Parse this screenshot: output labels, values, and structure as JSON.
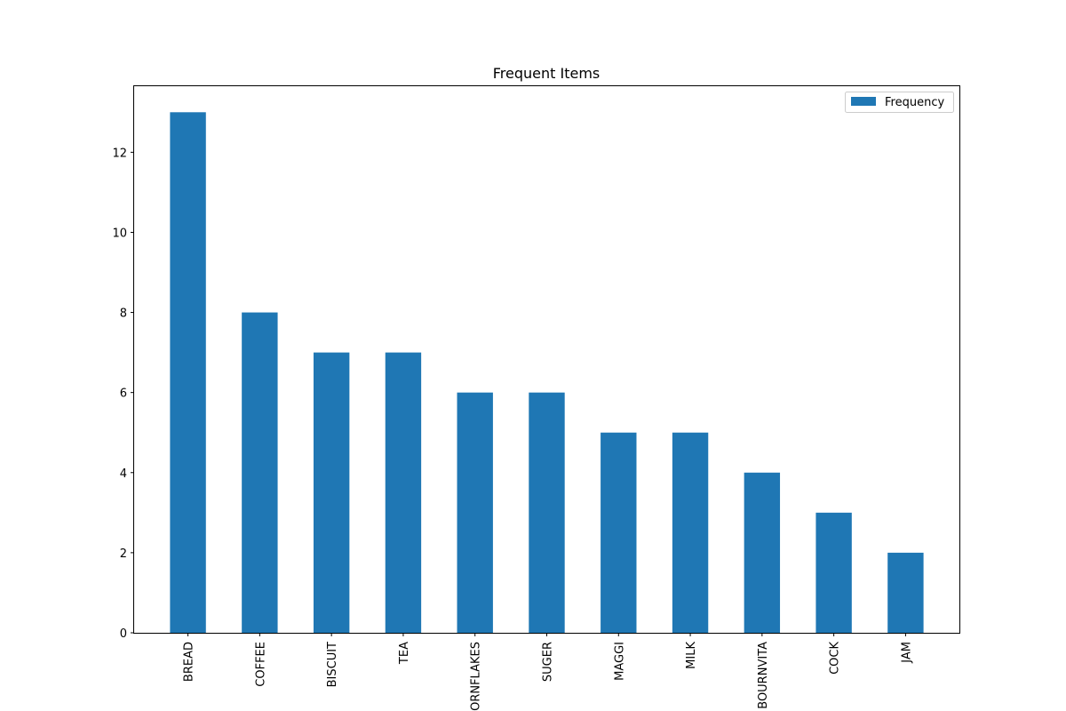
{
  "chart_data": {
    "type": "bar",
    "title": "Frequent Items",
    "xlabel": "",
    "ylabel": "",
    "categories": [
      "BREAD",
      "COFFEE",
      "BISCUIT",
      "TEA",
      "CORNFLAKES",
      "SUGER",
      "MAGGI",
      "MILK",
      "BOURNVITA",
      "COCK",
      "JAM"
    ],
    "series": [
      {
        "name": "Frequency",
        "values": [
          13,
          8,
          7,
          7,
          6,
          6,
          5,
          5,
          4,
          3,
          2
        ],
        "color": "#1f77b4"
      }
    ],
    "ylim": [
      0,
      13.65
    ],
    "yticks": [
      0,
      2,
      4,
      6,
      8,
      10,
      12
    ],
    "grid": false,
    "legend_position": "top-right"
  }
}
